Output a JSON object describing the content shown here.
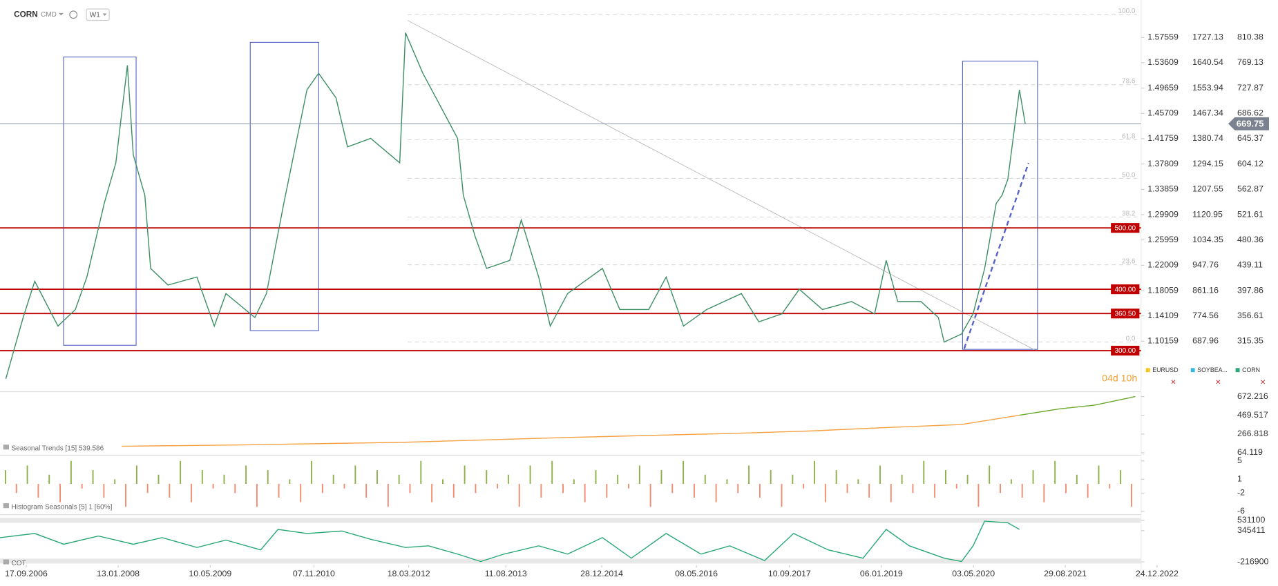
{
  "header": {
    "symbol": "CORN",
    "market": "CMD",
    "interval": "W1"
  },
  "price_chart": {
    "x": [
      "2006-06",
      "2006-09",
      "2006-11",
      "2007-03",
      "2007-06",
      "2007-08",
      "2007-11",
      "2008-01",
      "2008-03",
      "2008-04",
      "2008-06",
      "2008-07",
      "2008-10",
      "2009-03",
      "2009-06",
      "2009-08",
      "2010-01",
      "2010-03",
      "2010-06",
      "2010-10",
      "2010-12",
      "2011-03",
      "2011-05",
      "2011-09",
      "2012-02",
      "2012-03",
      "2012-06",
      "2012-09",
      "2012-12",
      "2013-01",
      "2013-03",
      "2013-05",
      "2013-09",
      "2013-11",
      "2014-02",
      "2014-04",
      "2014-07",
      "2015-01",
      "2015-04",
      "2015-09",
      "2015-12",
      "2016-03",
      "2016-07",
      "2017-01",
      "2017-04",
      "2017-08",
      "2017-11",
      "2018-03",
      "2018-08",
      "2018-12",
      "2019-02",
      "2019-04",
      "2019-08",
      "2019-11",
      "2019-12",
      "2020-03",
      "2020-05",
      "2020-07",
      "2020-09",
      "2020-10",
      "2020-11",
      "2021-01",
      "2021-02"
    ],
    "values": [
      254,
      354,
      413,
      340,
      367,
      420,
      540,
      606,
      765,
      619,
      553,
      434,
      407,
      420,
      340,
      393,
      354,
      393,
      540,
      725,
      752,
      712,
      632,
      646,
      606,
      818,
      752,
      699,
      646,
      553,
      487,
      434,
      447,
      513,
      420,
      340,
      393,
      434,
      367,
      367,
      420,
      340,
      367,
      393,
      347,
      360,
      400,
      367,
      380,
      360,
      447,
      380,
      380,
      354,
      314,
      327,
      360,
      434,
      540,
      553,
      579,
      725,
      669.75
    ],
    "color": "#3f8f66",
    "xlim": [
      "2006-05",
      "2022-10"
    ],
    "ylim": [
      247.7,
      871.4
    ],
    "yticks": [
      810.38,
      769.13,
      727.87,
      686.62,
      645.37,
      604.12,
      562.87,
      521.61,
      480.36,
      439.11,
      397.86,
      356.61,
      315.35
    ],
    "last_price": 669.75,
    "levels": [
      500,
      400,
      360.5,
      300
    ],
    "level_labels": [
      "500.00",
      "400.00",
      "360.50",
      "300.00"
    ],
    "level_color": "#c00000",
    "fib_levels": [
      {
        "value": 100,
        "label": "100.0"
      },
      {
        "value": 78.6,
        "label": "78.6"
      },
      {
        "value": 61.8,
        "label": "61.8"
      },
      {
        "value": 50,
        "label": "50.0"
      },
      {
        "value": 38.2,
        "label": "38.2"
      },
      {
        "value": 23.6,
        "label": "23.6"
      },
      {
        "value": 0,
        "label": "0.0"
      }
    ],
    "eurusd_ticks": [
      1.57559,
      1.53609,
      1.49659,
      1.45709,
      1.41759,
      1.37809,
      1.33859,
      1.29909,
      1.25959,
      1.22009,
      1.18059,
      1.14109,
      1.10159
    ],
    "soybean_ticks": [
      1727.13,
      1640.54,
      1553.94,
      1467.34,
      1380.74,
      1294.15,
      1207.55,
      1120.95,
      1034.35,
      947.76,
      861.16,
      774.56,
      687.96
    ]
  },
  "xaxis": {
    "ticks": [
      "17.09.2006",
      "13.01.2008",
      "10.05.2009",
      "07.11.2010",
      "18.03.2012",
      "11.08.2013",
      "28.12.2014",
      "08.05.2016",
      "10.09.2017",
      "06.01.2019",
      "03.05.2020",
      "29.08.2021",
      "24.12.2022"
    ]
  },
  "legend": {
    "items": [
      {
        "name": "EURUSD",
        "color": "#f5c518"
      },
      {
        "name": "SOYBEA...",
        "color": "#3bb6e0"
      },
      {
        "name": "CORN",
        "color": "#2aa876"
      }
    ],
    "timer": "04d 10h"
  },
  "seasonal": {
    "label": "Seasonal  Trends [15] 539.586",
    "ylim": [
      64.119,
      672.216
    ],
    "yticks": [
      672.216,
      469.517,
      266.818,
      64.119
    ],
    "series": [
      {
        "color": "#f5a142",
        "x": [
          "2008-02",
          "2009-11",
          "2012-03",
          "2014-07",
          "2016-12",
          "2018-01",
          "2019-03",
          "2020-03",
          "2021-01"
        ],
        "values": [
          135,
          150,
          178,
          230,
          275,
          300,
          340,
          370,
          470
        ]
      },
      {
        "color": "#6aa82f",
        "x": [
          "2021-01",
          "2021-08",
          "2022-02",
          "2022-09"
        ],
        "values": [
          470,
          540,
          580,
          672
        ]
      }
    ]
  },
  "histogram": {
    "label": "Histogram  Seasonals  [5] 1 [60%]",
    "ylim": [
      -6,
      5
    ],
    "yticks": [
      5,
      1,
      -2,
      -6
    ],
    "up_color": "#8db04a",
    "down_color": "#f08a70",
    "values": [
      3,
      -2,
      4,
      -3,
      2,
      -4,
      5,
      -1,
      3,
      -3,
      1,
      -5,
      4,
      -2,
      2,
      -3,
      5,
      -4,
      3,
      -1,
      2,
      -2,
      4,
      -5,
      3,
      -3,
      1,
      -4,
      5,
      -2,
      2,
      -1,
      4,
      -3,
      3,
      -5,
      2,
      -2,
      5,
      -4,
      1,
      -3,
      4,
      -2,
      3,
      -1,
      2,
      -5,
      4,
      -3,
      5,
      -2,
      1,
      -4,
      3,
      -3,
      2,
      -1,
      4,
      -5,
      3,
      -2,
      5,
      -3,
      2,
      -4,
      1,
      -2,
      4,
      -3,
      3,
      -5,
      2,
      -1,
      5,
      -4,
      3,
      -2,
      1,
      -3,
      4,
      -4,
      2,
      -2,
      5,
      -3,
      3,
      -1,
      2,
      -5,
      4,
      -2,
      1,
      -3,
      3,
      -4,
      5,
      -2,
      2,
      -3,
      4,
      -1,
      3,
      -5
    ]
  },
  "cot": {
    "label": "COT",
    "color": "#2aa876",
    "ylim": [
      -216900,
      531100
    ],
    "yticks": [
      531100,
      345411,
      -216900
    ],
    "x": [
      "2006-05",
      "2006-11",
      "2007-04",
      "2007-10",
      "2008-04",
      "2008-09",
      "2009-03",
      "2009-08",
      "2010-02",
      "2010-05",
      "2010-10",
      "2011-04",
      "2011-09",
      "2012-03",
      "2012-07",
      "2012-12",
      "2013-04",
      "2013-08",
      "2014-02",
      "2014-07",
      "2015-01",
      "2015-06",
      "2015-12",
      "2016-06",
      "2016-11",
      "2017-05",
      "2017-10",
      "2018-04",
      "2018-10",
      "2019-02",
      "2019-06",
      "2019-12",
      "2020-03",
      "2020-05",
      "2020-07",
      "2020-11",
      "2021-01"
    ],
    "values": [
      220300,
      294300,
      101900,
      249900,
      101900,
      220300,
      42700,
      175900,
      -1700,
      368300,
      294300,
      338700,
      190700,
      42700,
      72300,
      -75700,
      -210000,
      -75700,
      72300,
      -75700,
      220300,
      -149700,
      294300,
      -75700,
      72300,
      -194100,
      294300,
      -1700,
      -149700,
      368300,
      72300,
      -149700,
      -210000,
      72300,
      516300,
      486700,
      368300
    ]
  }
}
